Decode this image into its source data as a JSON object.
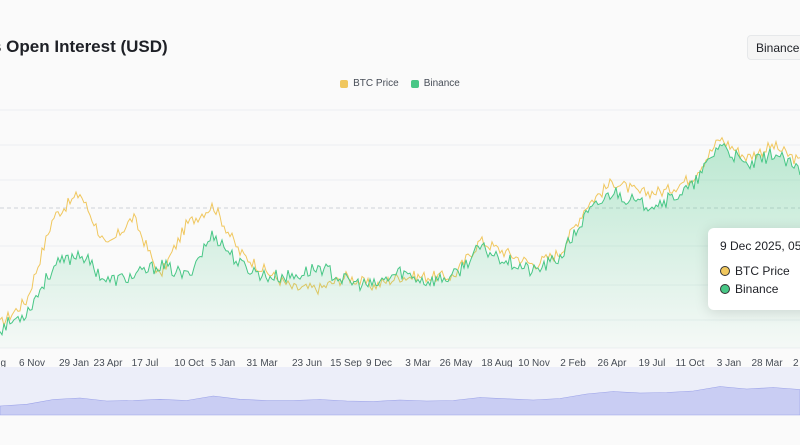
{
  "header": {
    "title": "s Open Interest (USD)",
    "exchange_label": "Binance"
  },
  "colors": {
    "btc_price": "#f0c75e",
    "binance": "#48c786",
    "navigator": "#c9cdf3"
  },
  "tooltip": {
    "date": "9 Dec 2025, 05:",
    "rows": [
      "BTC Price",
      "Binance"
    ]
  },
  "chart_data": {
    "type": "line",
    "x_ticks": [
      "g",
      "6 Nov",
      "29 Jan",
      "23 Apr",
      "17 Jul",
      "10 Oct",
      "5 Jan",
      "31 Mar",
      "23 Jun",
      "15 Sep",
      "9 Dec",
      "3 Mar",
      "26 May",
      "18 Aug",
      "10 Nov",
      "2 Feb",
      "26 Apr",
      "19 Jul",
      "11 Oct",
      "3 Jan",
      "28 Mar",
      "2"
    ],
    "legend": [
      "BTC Price",
      "Binance"
    ],
    "grid": true,
    "legend_position": "top-center",
    "series": [
      {
        "name": "BTC Price",
        "area": false,
        "values": [
          0.1,
          0.2,
          0.55,
          0.65,
          0.42,
          0.55,
          0.3,
          0.52,
          0.6,
          0.4,
          0.32,
          0.25,
          0.25,
          0.3,
          0.26,
          0.3,
          0.3,
          0.3,
          0.45,
          0.4,
          0.35,
          0.4,
          0.6,
          0.7,
          0.65,
          0.66,
          0.72,
          0.88,
          0.8,
          0.85,
          0.78
        ]
      },
      {
        "name": "Binance",
        "area": true,
        "values": [
          0.08,
          0.15,
          0.34,
          0.4,
          0.28,
          0.3,
          0.35,
          0.3,
          0.48,
          0.35,
          0.3,
          0.3,
          0.34,
          0.28,
          0.26,
          0.32,
          0.28,
          0.3,
          0.42,
          0.37,
          0.32,
          0.38,
          0.56,
          0.66,
          0.6,
          0.62,
          0.68,
          0.86,
          0.76,
          0.82,
          0.74
        ]
      }
    ]
  }
}
